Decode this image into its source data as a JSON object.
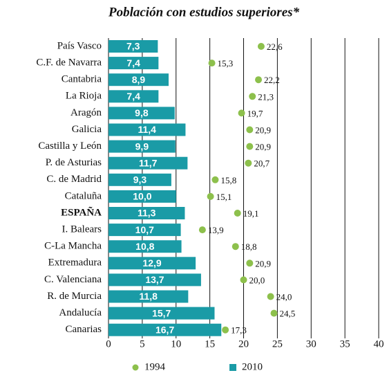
{
  "chart_data": {
    "type": "bar",
    "title": "Población con estudios superiores*",
    "categories": [
      "País Vasco",
      "C.F. de Navarra",
      "Cantabria",
      "La Rioja",
      "Aragón",
      "Galicia",
      "Castilla y León",
      "P. de Asturias",
      "C. de Madrid",
      "Cataluña",
      "ESPAÑA",
      "I. Balears",
      "C-La Mancha",
      "Extremadura",
      "C. Valenciana",
      "R. de Murcia",
      "Andalucía",
      "Canarias"
    ],
    "series": [
      {
        "name": "1994",
        "color": "#8dc04c",
        "marker": "dot",
        "values": [
          22.6,
          15.3,
          22.2,
          21.3,
          19.7,
          20.9,
          20.9,
          20.7,
          15.8,
          15.1,
          19.1,
          13.9,
          18.8,
          20.9,
          20.0,
          24.0,
          24.5,
          17.3
        ],
        "value_labels": [
          "22,6",
          "15,3",
          "22,2",
          "21,3",
          "19,7",
          "20,9",
          "20,9",
          "20,7",
          "15,8",
          "15,1",
          "19,1",
          "13,9",
          "18,8",
          "20,9",
          "20,0",
          "24,0",
          "24,5",
          "17,3"
        ]
      },
      {
        "name": "2010",
        "color": "#1a9ba6",
        "marker": "bar",
        "values": [
          7.3,
          7.4,
          8.9,
          7.4,
          9.8,
          11.4,
          9.9,
          11.7,
          9.3,
          10.0,
          11.3,
          10.7,
          10.8,
          12.9,
          13.7,
          11.8,
          15.7,
          16.7
        ],
        "value_labels": [
          "7,3",
          "7,4",
          "8,9",
          "7,4",
          "9,8",
          "11,4",
          "9,9",
          "11,7",
          "9,3",
          "10,0",
          "11,3",
          "10,7",
          "10,8",
          "12,9",
          "13,7",
          "11,8",
          "15,7",
          "16,7"
        ]
      }
    ],
    "xlim": [
      0,
      40
    ],
    "xticks": [
      0,
      5,
      10,
      15,
      20,
      25,
      30,
      35,
      40
    ],
    "grid": true
  }
}
